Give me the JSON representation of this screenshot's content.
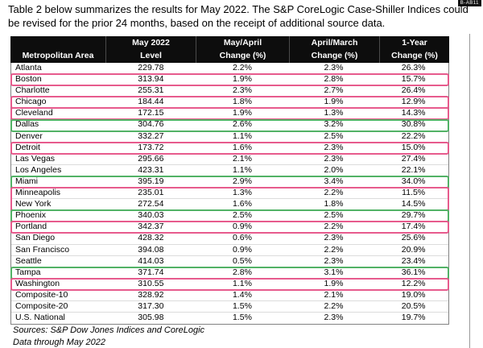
{
  "badge": "B-AB11",
  "intro": "Table 2 below summarizes the results for May 2022. The S&P CoreLogic Case-Shiller Indices could be revised for the prior 24 months, based on the receipt of additional source data.",
  "table": {
    "columns": [
      {
        "top": "",
        "bottom": "Metropolitan Area"
      },
      {
        "top": "May 2022",
        "bottom": "Level"
      },
      {
        "top": "May/April",
        "bottom": "Change (%)"
      },
      {
        "top": "April/March",
        "bottom": "Change (%)"
      },
      {
        "top": "1-Year",
        "bottom": "Change (%)"
      }
    ],
    "rows": [
      {
        "area": "Atlanta",
        "level": "229.78",
        "may_april": "2.2%",
        "april_march": "2.3%",
        "one_year": "26.3%",
        "highlight": null
      },
      {
        "area": "Boston",
        "level": "313.94",
        "may_april": "1.9%",
        "april_march": "2.8%",
        "one_year": "15.7%",
        "highlight": "pink"
      },
      {
        "area": "Charlotte",
        "level": "255.31",
        "may_april": "2.3%",
        "april_march": "2.7%",
        "one_year": "26.4%",
        "highlight": null
      },
      {
        "area": "Chicago",
        "level": "184.44",
        "may_april": "1.8%",
        "april_march": "1.9%",
        "one_year": "12.9%",
        "highlight": "pink"
      },
      {
        "area": "Cleveland",
        "level": "172.15",
        "may_april": "1.9%",
        "april_march": "1.3%",
        "one_year": "14.3%",
        "highlight": "pink"
      },
      {
        "area": "Dallas",
        "level": "304.76",
        "may_april": "2.6%",
        "april_march": "3.2%",
        "one_year": "30.8%",
        "highlight": "green"
      },
      {
        "area": "Denver",
        "level": "332.27",
        "may_april": "1.1%",
        "april_march": "2.5%",
        "one_year": "22.2%",
        "highlight": null
      },
      {
        "area": "Detroit",
        "level": "173.72",
        "may_april": "1.6%",
        "april_march": "2.3%",
        "one_year": "15.0%",
        "highlight": "pink"
      },
      {
        "area": "Las Vegas",
        "level": "295.66",
        "may_april": "2.1%",
        "april_march": "2.3%",
        "one_year": "27.4%",
        "highlight": null
      },
      {
        "area": "Los Angeles",
        "level": "423.31",
        "may_april": "1.1%",
        "april_march": "2.0%",
        "one_year": "22.1%",
        "highlight": null
      },
      {
        "area": "Miami",
        "level": "395.19",
        "may_april": "2.9%",
        "april_march": "3.4%",
        "one_year": "34.0%",
        "highlight": "green"
      },
      {
        "area": "Minneapolis",
        "level": "235.01",
        "may_april": "1.3%",
        "april_march": "2.2%",
        "one_year": "11.5%",
        "highlight": "pink",
        "highlight_span": 2
      },
      {
        "area": "New York",
        "level": "272.54",
        "may_april": "1.6%",
        "april_march": "1.8%",
        "one_year": "14.5%",
        "highlight": null
      },
      {
        "area": "Phoenix",
        "level": "340.03",
        "may_april": "2.5%",
        "april_march": "2.5%",
        "one_year": "29.7%",
        "highlight": "green"
      },
      {
        "area": "Portland",
        "level": "342.37",
        "may_april": "0.9%",
        "april_march": "2.2%",
        "one_year": "17.4%",
        "highlight": "pink"
      },
      {
        "area": "San Diego",
        "level": "428.32",
        "may_april": "0.6%",
        "april_march": "2.3%",
        "one_year": "25.6%",
        "highlight": null
      },
      {
        "area": "San Francisco",
        "level": "394.08",
        "may_april": "0.9%",
        "april_march": "2.2%",
        "one_year": "20.9%",
        "highlight": null
      },
      {
        "area": "Seattle",
        "level": "414.03",
        "may_april": "0.5%",
        "april_march": "2.3%",
        "one_year": "23.4%",
        "highlight": null
      },
      {
        "area": "Tampa",
        "level": "371.74",
        "may_april": "2.8%",
        "april_march": "3.1%",
        "one_year": "36.1%",
        "highlight": "green"
      },
      {
        "area": "Washington",
        "level": "310.55",
        "may_april": "1.1%",
        "april_march": "1.9%",
        "one_year": "12.2%",
        "highlight": "pink"
      },
      {
        "area": "Composite-10",
        "level": "328.92",
        "may_april": "1.4%",
        "april_march": "2.1%",
        "one_year": "19.0%",
        "highlight": null
      },
      {
        "area": "Composite-20",
        "level": "317.30",
        "may_april": "1.5%",
        "april_march": "2.2%",
        "one_year": "20.5%",
        "highlight": null
      },
      {
        "area": "U.S. National",
        "level": "305.98",
        "may_april": "1.5%",
        "april_march": "2.3%",
        "one_year": "19.7%",
        "highlight": null
      }
    ]
  },
  "footer": {
    "sources": "Sources: S&P Dow Jones Indices and CoreLogic",
    "data_through": "Data through May 2022"
  },
  "colors": {
    "highlight_pink": "#e75b8d",
    "highlight_green": "#52b266",
    "header_bg": "#0d0d0d"
  }
}
